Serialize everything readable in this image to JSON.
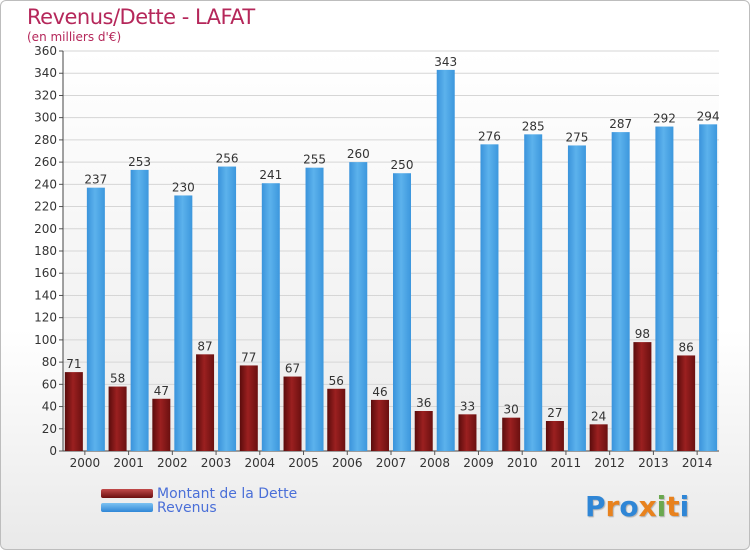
{
  "header": {
    "title": "Revenus/Dette - LAFAT",
    "subtitle": "(en milliers d'€)"
  },
  "chart_data": {
    "type": "bar",
    "title": "Revenus/Dette - LAFAT",
    "subtitle": "(en milliers d'€)",
    "xlabel": "",
    "ylabel": "",
    "ylim": [
      0,
      360
    ],
    "ytick_step": 20,
    "grid": true,
    "legend_position": "bottom-left",
    "categories": [
      "2000",
      "2001",
      "2002",
      "2003",
      "2004",
      "2005",
      "2006",
      "2007",
      "2008",
      "2009",
      "2010",
      "2011",
      "2012",
      "2013",
      "2014"
    ],
    "series": [
      {
        "name": "Montant de la Dette",
        "color": "#8b1b1b",
        "values": [
          71,
          58,
          47,
          87,
          77,
          67,
          56,
          46,
          36,
          33,
          30,
          27,
          24,
          98,
          86
        ]
      },
      {
        "name": "Revenus",
        "color": "#4ea6e6",
        "values": [
          237,
          253,
          230,
          256,
          241,
          255,
          260,
          250,
          343,
          276,
          285,
          275,
          287,
          292,
          294
        ]
      }
    ]
  },
  "legend": {
    "items": [
      {
        "label": "Montant de la Dette",
        "color": "#8b1b1b"
      },
      {
        "label": "Revenus",
        "color": "#4ea6e6"
      }
    ]
  },
  "logo": {
    "letters": [
      "P",
      "r",
      "o",
      "x",
      "i",
      "t",
      "i"
    ],
    "colors": [
      "#2f86d6",
      "#e8821e",
      "#2f86d6",
      "#e8821e",
      "#6aa84f",
      "#e8821e",
      "#2f86d6"
    ]
  }
}
